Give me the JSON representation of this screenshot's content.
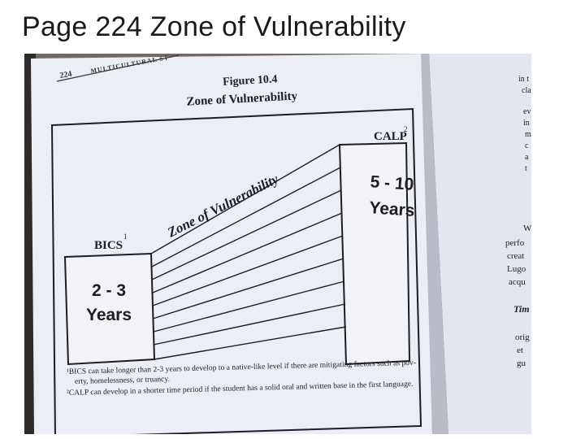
{
  "slide": {
    "title": "Page 224 Zone of Vulnerability"
  },
  "book": {
    "page_number": "224",
    "running_head": "MULTICULTURAL ST",
    "figure_number": "Figure 10.4",
    "figure_title": "Zone of Vulnerability",
    "zone_label": "Zone of Vulnerability",
    "bics": {
      "label": "BICS",
      "superscript": "1",
      "years_line1": "2 - 3",
      "years_line2": "Years"
    },
    "calp": {
      "label": "CALP",
      "superscript": "2",
      "years_line1": "5 - 10",
      "years_line2": "Years"
    },
    "footnote_1_line1": "¹BICS can take longer than 2-3 years to develop to a native-like level if there are mitigating factors such as pov-",
    "footnote_1_line2": "erty, homelessness, or truancy.",
    "footnote_2": "²CALP can develop in a shorter time period if the student has a solid oral and written base in the first language.",
    "right_page_fragments": [
      "in t",
      "cla",
      "ev",
      "in",
      "m",
      "c",
      "a",
      "t",
      "W",
      "perfo",
      "creat",
      "Lugo",
      "acqu",
      "Tim",
      "orig",
      "et",
      "gu"
    ]
  },
  "colors": {
    "paper": "#e9ebf4",
    "ink": "#1d1d22",
    "background": "#6f6a64"
  }
}
